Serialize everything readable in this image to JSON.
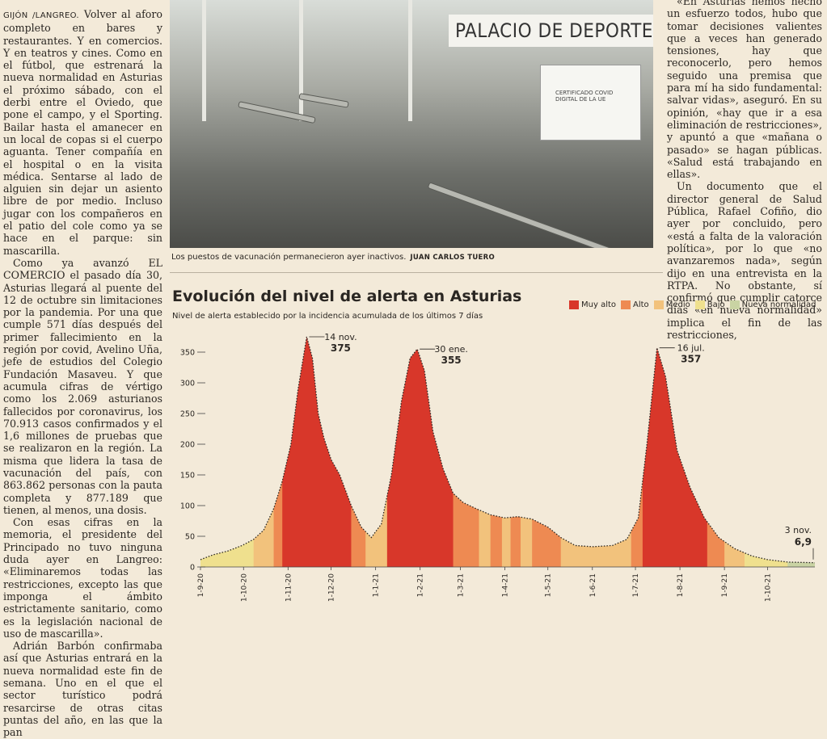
{
  "article_left": {
    "byline": "GIJÓN /LANGREO.",
    "paragraphs": [
      " Volver al aforo completo en bares y restaurantes. Y en comercios. Y en teatros y cines. Como en el fútbol, que estrenará la nueva normalidad en Asturias el próximo sábado, con el derbi entre el Oviedo, que pone el campo, y el Sporting. Bailar hasta el amanecer en un local de copas si el cuerpo aguanta. Tener compañía en el hospital o en la visita médica. Sentarse al lado de alguien sin dejar un asiento libre de por medio. Incluso jugar con los compañeros en el patio del cole como ya se hace en el parque: sin mascarilla.",
      "Como ya avanzó EL COMERCIO el pasado día 30, Asturias llegará al puente del 12 de octubre sin limitaciones por la pandemia. Por una que cumple 571 días después del primer fallecimiento en la región por covid, Avelino Uña, jefe de estudios del Colegio Fundación Masaveu. Y que acumula cifras de vértigo como los 2.069 asturianos fallecidos por coronavirus, los 70.913 casos confirmados y el 1,6 millones de pruebas que se realizaron en la región. La misma que lidera la tasa de vacunación del país, con 863.862 personas con la pauta completa y 877.189 que tienen, al menos, una dosis.",
      "Con esas cifras en la memoria, el presidente del Principado no tuvo ninguna duda ayer en Langreo: «Eliminaremos todas las restricciones, excepto las que imponga el ámbito estrictamente sanitario, como es la legislación nacional de uso de mascarilla».",
      "Adrián Barbón confirmaba así que Asturias entrará en la nueva normalidad este fin de semana. Uno en el que el sector turístico podrá resarcirse de otras citas puntas del año, en las que la pan"
    ]
  },
  "article_right": {
    "paragraphs": [
      "«En Asturias hemos hecho un esfuerzo todos, hubo que tomar decisiones valientes que a veces han generado tensiones, hay que reconocerlo, pero hemos seguido una premisa que para mí ha sido fundamental: salvar vidas», aseguró. En su opinión, «hay que ir a esa eliminación de restricciones», y apuntó a que «mañana o pasado» se hagan públicas. «Salud está trabajando en ellas».",
      "Un documento que el director general de Salud Pública, Rafael Cofiño, dio ayer por concluido, pero «está a falta de la valoración política», por lo que «no avanzaremos nada», según dijo en una entrevista en la RTPA. No obstante, sí confirmó que cumplir catorce días «en nueva normalidad» implica el fin de las restricciones,"
    ]
  },
  "photo": {
    "banner_text": "PALACIO DE DEPORTE",
    "sign_text": "CERTIFICADO COVID DIGITAL DE LA UE",
    "caption": "Los puestos de vacunación permanecieron ayer inactivos.",
    "credit": "JUAN CARLOS TUERO"
  },
  "chart_data": {
    "type": "area",
    "title": "Evolución del nivel de alerta en Asturias",
    "subtitle": "Nivel de alerta establecido por la incidencia acumulada de los últimos 7 días",
    "ylim": [
      0,
      375
    ],
    "yticks": [
      0,
      50,
      100,
      150,
      200,
      250,
      300,
      350
    ],
    "xlim": [
      "2020-09-01",
      "2021-11-03"
    ],
    "xticks": [
      {
        "label": "1-9-20",
        "date": "2020-09-01"
      },
      {
        "label": "1-10-20",
        "date": "2020-10-01"
      },
      {
        "label": "1-11-20",
        "date": "2020-11-01"
      },
      {
        "label": "1-12-20",
        "date": "2020-12-01"
      },
      {
        "label": "1-1-21",
        "date": "2021-01-01"
      },
      {
        "label": "1-2-21",
        "date": "2021-02-01"
      },
      {
        "label": "1-3-21",
        "date": "2021-03-01"
      },
      {
        "label": "1-4-21",
        "date": "2021-04-01"
      },
      {
        "label": "1-5-21",
        "date": "2021-05-01"
      },
      {
        "label": "1-6-21",
        "date": "2021-06-01"
      },
      {
        "label": "1-7-21",
        "date": "2021-07-01"
      },
      {
        "label": "1-8-21",
        "date": "2021-08-01"
      },
      {
        "label": "1-9-21",
        "date": "2021-09-01"
      },
      {
        "label": "1-10-21",
        "date": "2021-10-01"
      }
    ],
    "legend": [
      {
        "label": "Muy alto",
        "color": "#d8372a"
      },
      {
        "label": "Alto",
        "color": "#ee8a52"
      },
      {
        "label": "Medio",
        "color": "#f2c27c"
      },
      {
        "label": "Bajo",
        "color": "#efe08e"
      },
      {
        "label": "Nueva normalidad",
        "color": "#c9d3a3"
      }
    ],
    "series": [
      {
        "points": [
          [
            "2020-09-01",
            12
          ],
          [
            "2020-09-10",
            20
          ],
          [
            "2020-09-20",
            26
          ],
          [
            "2020-09-30",
            35
          ],
          [
            "2020-10-08",
            45
          ],
          [
            "2020-10-15",
            60
          ],
          [
            "2020-10-22",
            95
          ],
          [
            "2020-10-28",
            140
          ],
          [
            "2020-11-03",
            200
          ],
          [
            "2020-11-08",
            290
          ],
          [
            "2020-11-14",
            375
          ],
          [
            "2020-11-18",
            340
          ],
          [
            "2020-11-22",
            250
          ],
          [
            "2020-11-26",
            210
          ],
          [
            "2020-12-01",
            175
          ],
          [
            "2020-12-07",
            150
          ],
          [
            "2020-12-15",
            100
          ],
          [
            "2020-12-22",
            65
          ],
          [
            "2020-12-29",
            48
          ],
          [
            "2021-01-05",
            70
          ],
          [
            "2021-01-12",
            150
          ],
          [
            "2021-01-19",
            270
          ],
          [
            "2021-01-25",
            340
          ],
          [
            "2021-01-30",
            355
          ],
          [
            "2021-02-04",
            320
          ],
          [
            "2021-02-10",
            220
          ],
          [
            "2021-02-17",
            160
          ],
          [
            "2021-02-24",
            120
          ],
          [
            "2021-03-03",
            105
          ],
          [
            "2021-03-12",
            95
          ],
          [
            "2021-03-22",
            85
          ],
          [
            "2021-04-01",
            80
          ],
          [
            "2021-04-10",
            82
          ],
          [
            "2021-04-20",
            78
          ],
          [
            "2021-05-01",
            65
          ],
          [
            "2021-05-10",
            48
          ],
          [
            "2021-05-20",
            35
          ],
          [
            "2021-06-01",
            33
          ],
          [
            "2021-06-15",
            35
          ],
          [
            "2021-06-25",
            45
          ],
          [
            "2021-07-03",
            80
          ],
          [
            "2021-07-09",
            200
          ],
          [
            "2021-07-16",
            357
          ],
          [
            "2021-07-22",
            310
          ],
          [
            "2021-07-30",
            190
          ],
          [
            "2021-08-08",
            130
          ],
          [
            "2021-08-18",
            80
          ],
          [
            "2021-08-28",
            48
          ],
          [
            "2021-09-08",
            30
          ],
          [
            "2021-09-20",
            18
          ],
          [
            "2021-10-01",
            12
          ],
          [
            "2021-10-15",
            8
          ],
          [
            "2021-11-03",
            6.9
          ]
        ]
      }
    ],
    "bands": [
      {
        "from": "2020-09-01",
        "to": "2020-10-08",
        "level": "Bajo"
      },
      {
        "from": "2020-10-08",
        "to": "2020-10-22",
        "level": "Medio"
      },
      {
        "from": "2020-10-22",
        "to": "2020-10-28",
        "level": "Alto"
      },
      {
        "from": "2020-10-28",
        "to": "2020-12-15",
        "level": "Muy alto"
      },
      {
        "from": "2020-12-15",
        "to": "2020-12-25",
        "level": "Alto"
      },
      {
        "from": "2020-12-25",
        "to": "2021-01-09",
        "level": "Medio"
      },
      {
        "from": "2021-01-09",
        "to": "2021-02-24",
        "level": "Muy alto"
      },
      {
        "from": "2021-02-24",
        "to": "2021-03-14",
        "level": "Alto"
      },
      {
        "from": "2021-03-14",
        "to": "2021-03-22",
        "level": "Medio"
      },
      {
        "from": "2021-03-22",
        "to": "2021-03-30",
        "level": "Alto"
      },
      {
        "from": "2021-03-30",
        "to": "2021-04-05",
        "level": "Medio"
      },
      {
        "from": "2021-04-05",
        "to": "2021-04-12",
        "level": "Alto"
      },
      {
        "from": "2021-04-12",
        "to": "2021-04-20",
        "level": "Medio"
      },
      {
        "from": "2021-04-20",
        "to": "2021-05-10",
        "level": "Alto"
      },
      {
        "from": "2021-05-10",
        "to": "2021-06-28",
        "level": "Medio"
      },
      {
        "from": "2021-06-28",
        "to": "2021-07-06",
        "level": "Alto"
      },
      {
        "from": "2021-07-06",
        "to": "2021-08-20",
        "level": "Muy alto"
      },
      {
        "from": "2021-08-20",
        "to": "2021-09-01",
        "level": "Alto"
      },
      {
        "from": "2021-09-01",
        "to": "2021-09-15",
        "level": "Medio"
      },
      {
        "from": "2021-09-15",
        "to": "2021-10-15",
        "level": "Bajo"
      },
      {
        "from": "2021-10-15",
        "to": "2021-11-03",
        "level": "Nueva normalidad"
      }
    ],
    "annotations": [
      {
        "date": "2020-11-14",
        "date_label": "14 nov.",
        "value_label": "375"
      },
      {
        "date": "2021-01-30",
        "date_label": "30 ene.",
        "value_label": "355"
      },
      {
        "date": "2021-07-16",
        "date_label": "16 jul.",
        "value_label": "357"
      },
      {
        "date": "2021-11-03",
        "date_label": "3 nov.",
        "value_label": "6,9"
      }
    ]
  }
}
